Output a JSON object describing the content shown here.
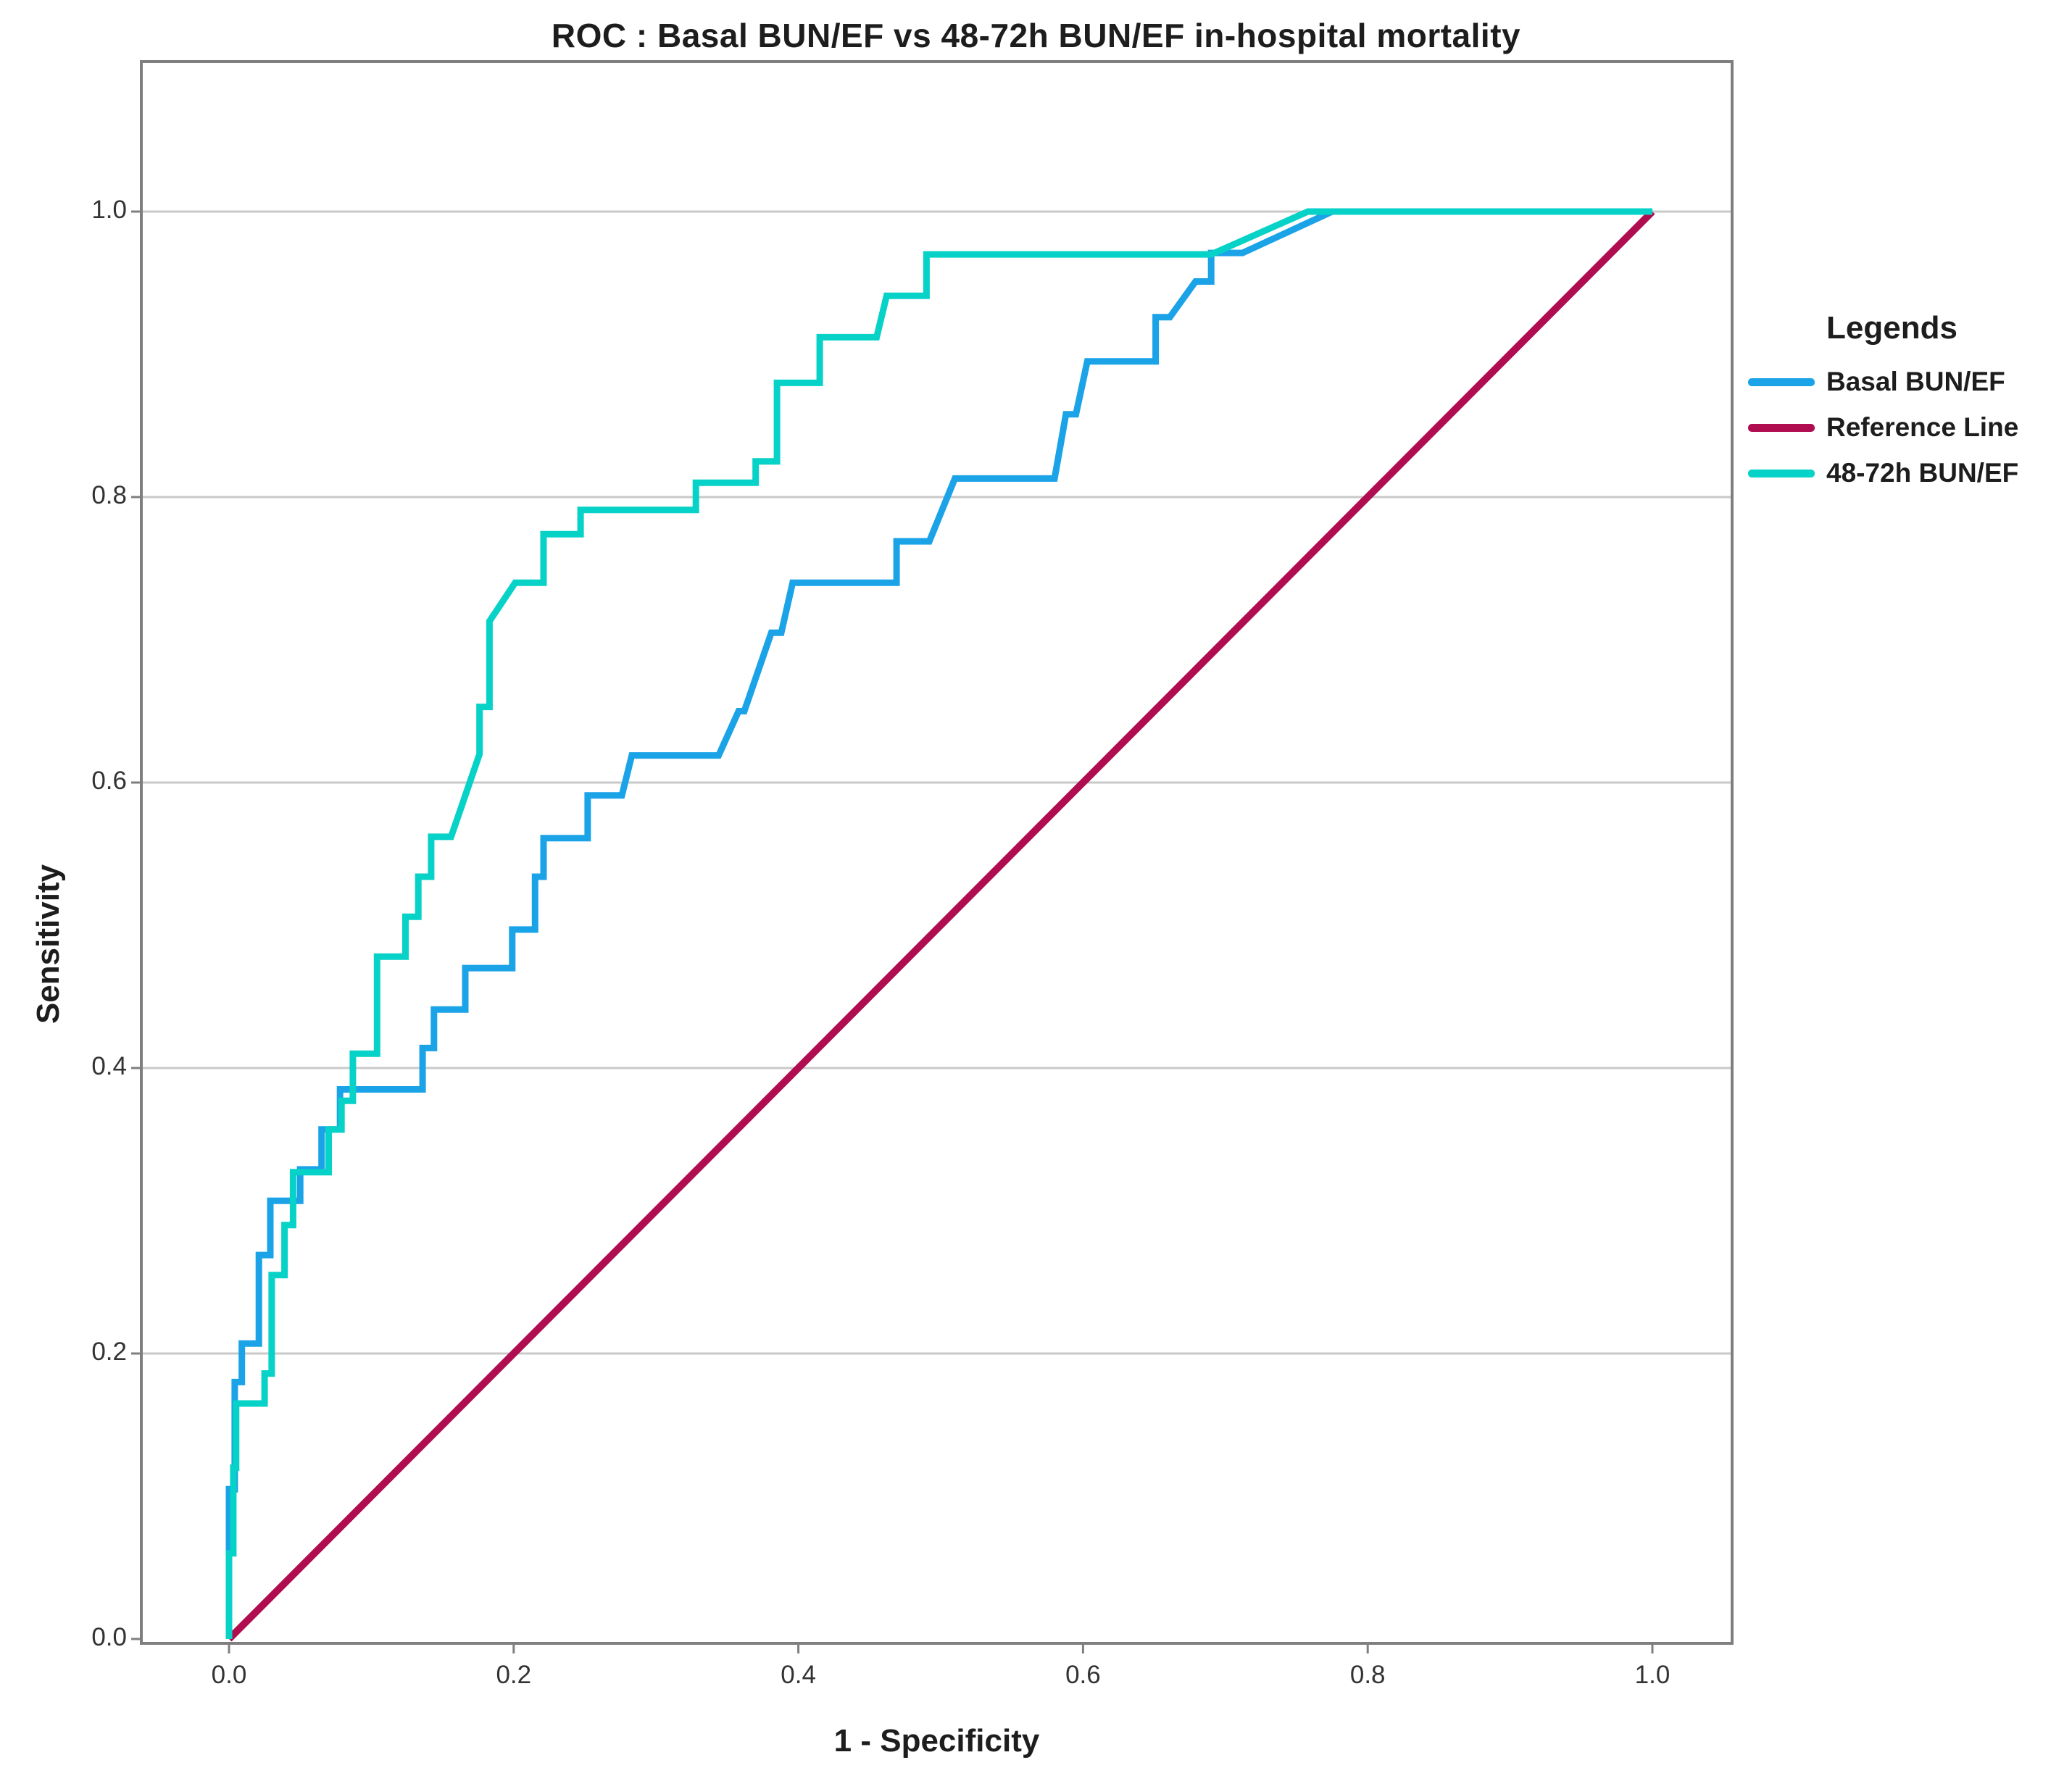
{
  "chart": {
    "title": "ROC : Basal BUN/EF vs 48-72h BUN/EF in-hospital mortality"
  },
  "legend": {
    "title": "Legends",
    "items": [
      {
        "label": "Basal BUN/EF",
        "color": "#1BA3E8"
      },
      {
        "label": "Reference Line",
        "color": "#B00C50"
      },
      {
        "label": "48-72h BUN/EF",
        "color": "#06D2C8"
      }
    ]
  },
  "chart_data": {
    "type": "line",
    "subtype": "roc-step-curves",
    "title": "ROC : Basal BUN/EF vs 48-72h BUN/EF in-hospital mortality",
    "xlabel": "1 - Specificity",
    "ylabel": "Sensitivity",
    "xlim": [
      0.0,
      1.0
    ],
    "ylim": [
      0.0,
      1.0
    ],
    "x_tick_values": [
      0.0,
      0.2,
      0.4,
      0.6,
      0.8,
      1.0
    ],
    "x_tick_labels": [
      "0.0",
      "0.2",
      "0.4",
      "0.6",
      "0.8",
      "1.0"
    ],
    "y_tick_values": [
      0.0,
      0.2,
      0.4,
      0.6,
      0.8,
      1.0
    ],
    "y_tick_labels": [
      "0.0",
      "0.2",
      "0.4",
      "0.6",
      "0.8",
      "1.0"
    ],
    "grid": "horizontal-only",
    "legend_position": "right",
    "grid_color": "#c9c9c9",
    "frame_color": "#7f7f7f",
    "series": [
      {
        "name": "Reference Line",
        "color": "#B00C50",
        "stroke_width": 10,
        "points": [
          [
            0.0,
            0.0
          ],
          [
            1.0,
            1.0
          ]
        ]
      },
      {
        "name": "Basal BUN/EF",
        "color": "#1BA3E8",
        "stroke_width": 9,
        "points": [
          [
            0.0,
            0.0
          ],
          [
            0.0,
            0.105
          ],
          [
            0.004,
            0.105
          ],
          [
            0.004,
            0.18
          ],
          [
            0.009,
            0.18
          ],
          [
            0.009,
            0.207
          ],
          [
            0.021,
            0.207
          ],
          [
            0.021,
            0.269
          ],
          [
            0.029,
            0.269
          ],
          [
            0.029,
            0.307
          ],
          [
            0.05,
            0.307
          ],
          [
            0.05,
            0.329
          ],
          [
            0.065,
            0.329
          ],
          [
            0.065,
            0.357
          ],
          [
            0.078,
            0.357
          ],
          [
            0.078,
            0.385
          ],
          [
            0.136,
            0.385
          ],
          [
            0.136,
            0.414
          ],
          [
            0.144,
            0.414
          ],
          [
            0.144,
            0.441
          ],
          [
            0.166,
            0.441
          ],
          [
            0.166,
            0.47
          ],
          [
            0.199,
            0.47
          ],
          [
            0.199,
            0.497
          ],
          [
            0.215,
            0.497
          ],
          [
            0.215,
            0.534
          ],
          [
            0.221,
            0.534
          ],
          [
            0.221,
            0.561
          ],
          [
            0.252,
            0.561
          ],
          [
            0.252,
            0.591
          ],
          [
            0.276,
            0.591
          ],
          [
            0.283,
            0.619
          ],
          [
            0.344,
            0.619
          ],
          [
            0.358,
            0.65
          ],
          [
            0.362,
            0.65
          ],
          [
            0.381,
            0.705
          ],
          [
            0.388,
            0.705
          ],
          [
            0.396,
            0.74
          ],
          [
            0.469,
            0.74
          ],
          [
            0.469,
            0.769
          ],
          [
            0.492,
            0.769
          ],
          [
            0.51,
            0.813
          ],
          [
            0.58,
            0.813
          ],
          [
            0.588,
            0.858
          ],
          [
            0.595,
            0.858
          ],
          [
            0.603,
            0.895
          ],
          [
            0.651,
            0.895
          ],
          [
            0.651,
            0.926
          ],
          [
            0.661,
            0.926
          ],
          [
            0.679,
            0.951
          ],
          [
            0.69,
            0.951
          ],
          [
            0.69,
            0.971
          ],
          [
            0.712,
            0.971
          ],
          [
            0.775,
            1.0
          ],
          [
            1.0,
            1.0
          ]
        ]
      },
      {
        "name": "48-72h BUN/EF",
        "color": "#06D2C8",
        "stroke_width": 9,
        "points": [
          [
            0.0,
            0.0
          ],
          [
            0.0,
            0.06
          ],
          [
            0.003,
            0.06
          ],
          [
            0.003,
            0.12
          ],
          [
            0.005,
            0.12
          ],
          [
            0.005,
            0.165
          ],
          [
            0.025,
            0.165
          ],
          [
            0.025,
            0.186
          ],
          [
            0.03,
            0.186
          ],
          [
            0.03,
            0.255
          ],
          [
            0.039,
            0.255
          ],
          [
            0.039,
            0.29
          ],
          [
            0.045,
            0.29
          ],
          [
            0.045,
            0.327
          ],
          [
            0.07,
            0.327
          ],
          [
            0.07,
            0.357
          ],
          [
            0.079,
            0.357
          ],
          [
            0.079,
            0.377
          ],
          [
            0.087,
            0.377
          ],
          [
            0.087,
            0.41
          ],
          [
            0.104,
            0.41
          ],
          [
            0.104,
            0.478
          ],
          [
            0.124,
            0.478
          ],
          [
            0.124,
            0.506
          ],
          [
            0.133,
            0.506
          ],
          [
            0.133,
            0.534
          ],
          [
            0.142,
            0.534
          ],
          [
            0.142,
            0.562
          ],
          [
            0.156,
            0.562
          ],
          [
            0.176,
            0.62
          ],
          [
            0.176,
            0.653
          ],
          [
            0.183,
            0.653
          ],
          [
            0.183,
            0.713
          ],
          [
            0.201,
            0.74
          ],
          [
            0.221,
            0.74
          ],
          [
            0.221,
            0.774
          ],
          [
            0.247,
            0.774
          ],
          [
            0.247,
            0.791
          ],
          [
            0.328,
            0.791
          ],
          [
            0.328,
            0.81
          ],
          [
            0.37,
            0.81
          ],
          [
            0.37,
            0.825
          ],
          [
            0.385,
            0.825
          ],
          [
            0.385,
            0.88
          ],
          [
            0.415,
            0.88
          ],
          [
            0.415,
            0.912
          ],
          [
            0.455,
            0.912
          ],
          [
            0.462,
            0.941
          ],
          [
            0.49,
            0.941
          ],
          [
            0.49,
            0.97
          ],
          [
            0.69,
            0.97
          ],
          [
            0.758,
            1.0
          ],
          [
            1.0,
            1.0
          ]
        ]
      }
    ]
  }
}
